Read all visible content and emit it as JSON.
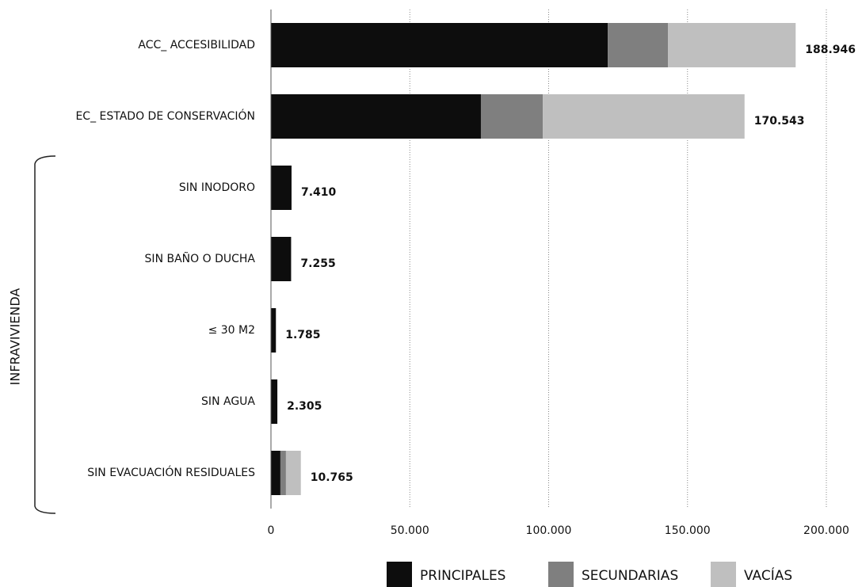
{
  "chart_data": {
    "type": "stacked-barh",
    "categories": [
      "ACC_ ACCESIBILIDAD",
      "EC_ ESTADO DE CONSERVACIÓN",
      "SIN INODORO",
      "SIN BAÑO O DUCHA",
      "≤ 30 M2",
      "SIN AGUA",
      "SIN EVACUACIÓN RESIDUALES"
    ],
    "series": [
      {
        "name": "PRINCIPALES",
        "color": "#0d0d0d",
        "values": [
          121300,
          75600,
          7410,
          7255,
          1785,
          2305,
          3400
        ]
      },
      {
        "name": "SECUNDARIAS",
        "color": "#7f7f7f",
        "values": [
          21700,
          22300,
          0,
          0,
          0,
          0,
          2000
        ]
      },
      {
        "name": "VACÍAS",
        "color": "#bfbfbf",
        "values": [
          45946,
          72643,
          0,
          0,
          0,
          0,
          5365
        ]
      }
    ],
    "totals": {
      "values": [
        188946,
        170543,
        7410,
        7255,
        1785,
        2305,
        10765
      ],
      "value_labels": [
        "188.946",
        "170.543",
        "7.410",
        "7.255",
        "1.785",
        "2.305",
        "10.765"
      ]
    },
    "group_label": "INFRAVIVIENDA",
    "xlim": [
      0,
      200000
    ],
    "xticks": [
      0,
      {
        "value": 50000,
        "label": "50.000"
      },
      {
        "value": 100000,
        "label": "100.000"
      },
      {
        "value": 150000,
        "label": "150.000"
      },
      {
        "value": 200000,
        "label": "200.000"
      }
    ],
    "grid": true,
    "legend": "bottom"
  }
}
